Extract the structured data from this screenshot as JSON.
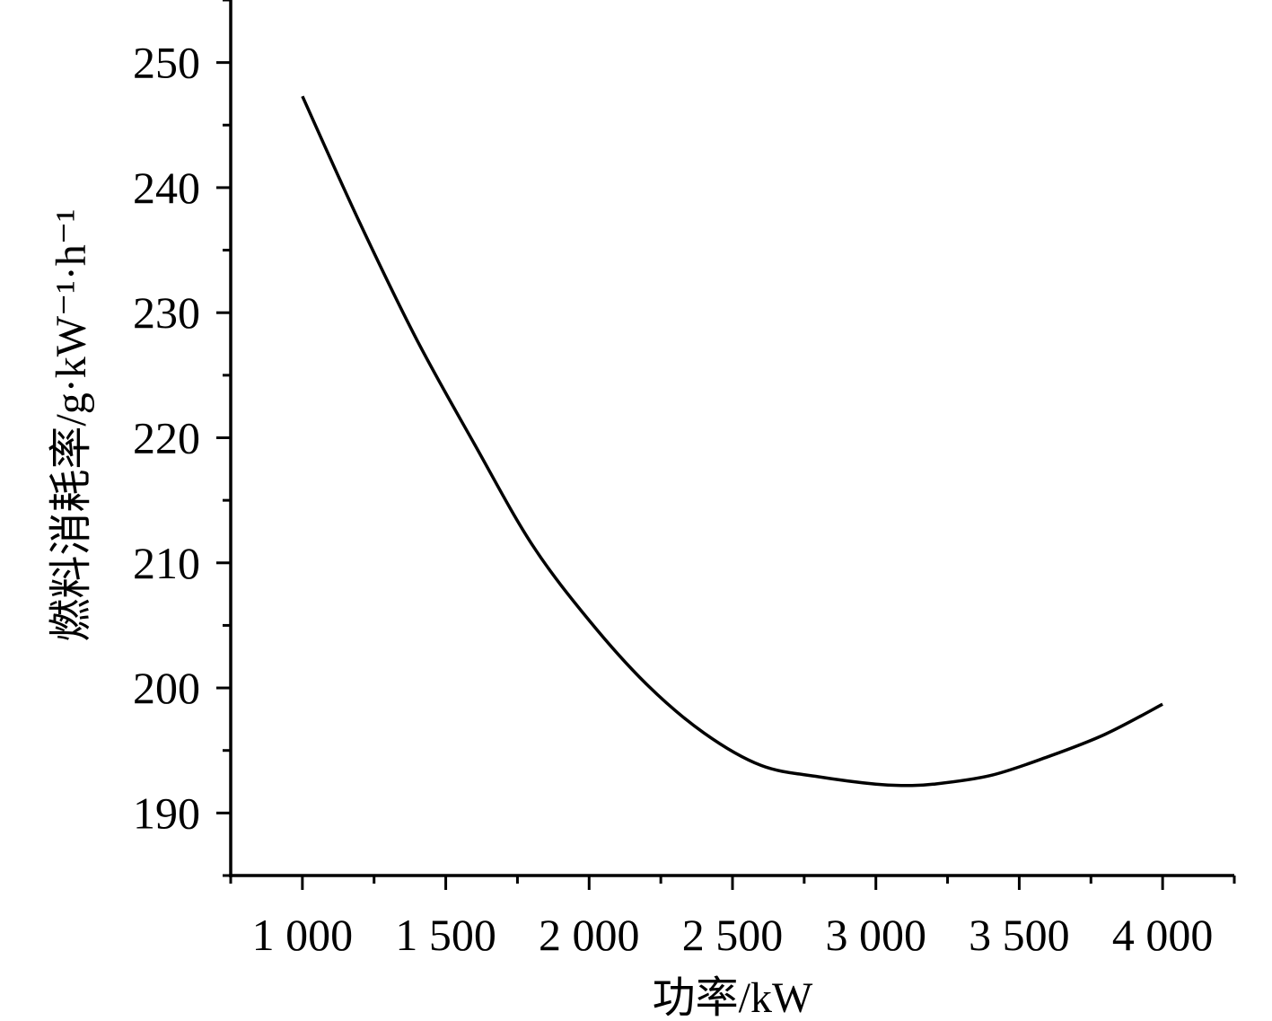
{
  "chart_data": {
    "type": "line",
    "title": "",
    "xlabel": "功率/kW",
    "ylabel": "燃料消耗率/g·kW⁻¹·h⁻¹",
    "xlim": [
      750,
      4250
    ],
    "ylim": [
      185,
      255
    ],
    "x_ticks": [
      1000,
      1500,
      2000,
      2500,
      3000,
      3500,
      4000
    ],
    "x_tick_labels": [
      "1 000",
      "1 500",
      "2 000",
      "2 500",
      "3 000",
      "3 500",
      "4 000"
    ],
    "y_ticks": [
      190,
      200,
      210,
      220,
      230,
      240,
      250
    ],
    "y_tick_labels": [
      "190",
      "200",
      "210",
      "220",
      "230",
      "240",
      "250"
    ],
    "grid": false,
    "series": [
      {
        "color": "#000000",
        "x": [
          1000,
          1200,
          1400,
          1600,
          1800,
          2000,
          2200,
          2400,
          2600,
          2800,
          3000,
          3100,
          3200,
          3400,
          3600,
          3800,
          4000
        ],
        "y": [
          247.3,
          237.2,
          227.8,
          219.5,
          211.5,
          205.4,
          200.3,
          196.4,
          193.8,
          192.9,
          192.3,
          192.2,
          192.3,
          193.0,
          194.5,
          196.3,
          198.7
        ]
      }
    ]
  }
}
